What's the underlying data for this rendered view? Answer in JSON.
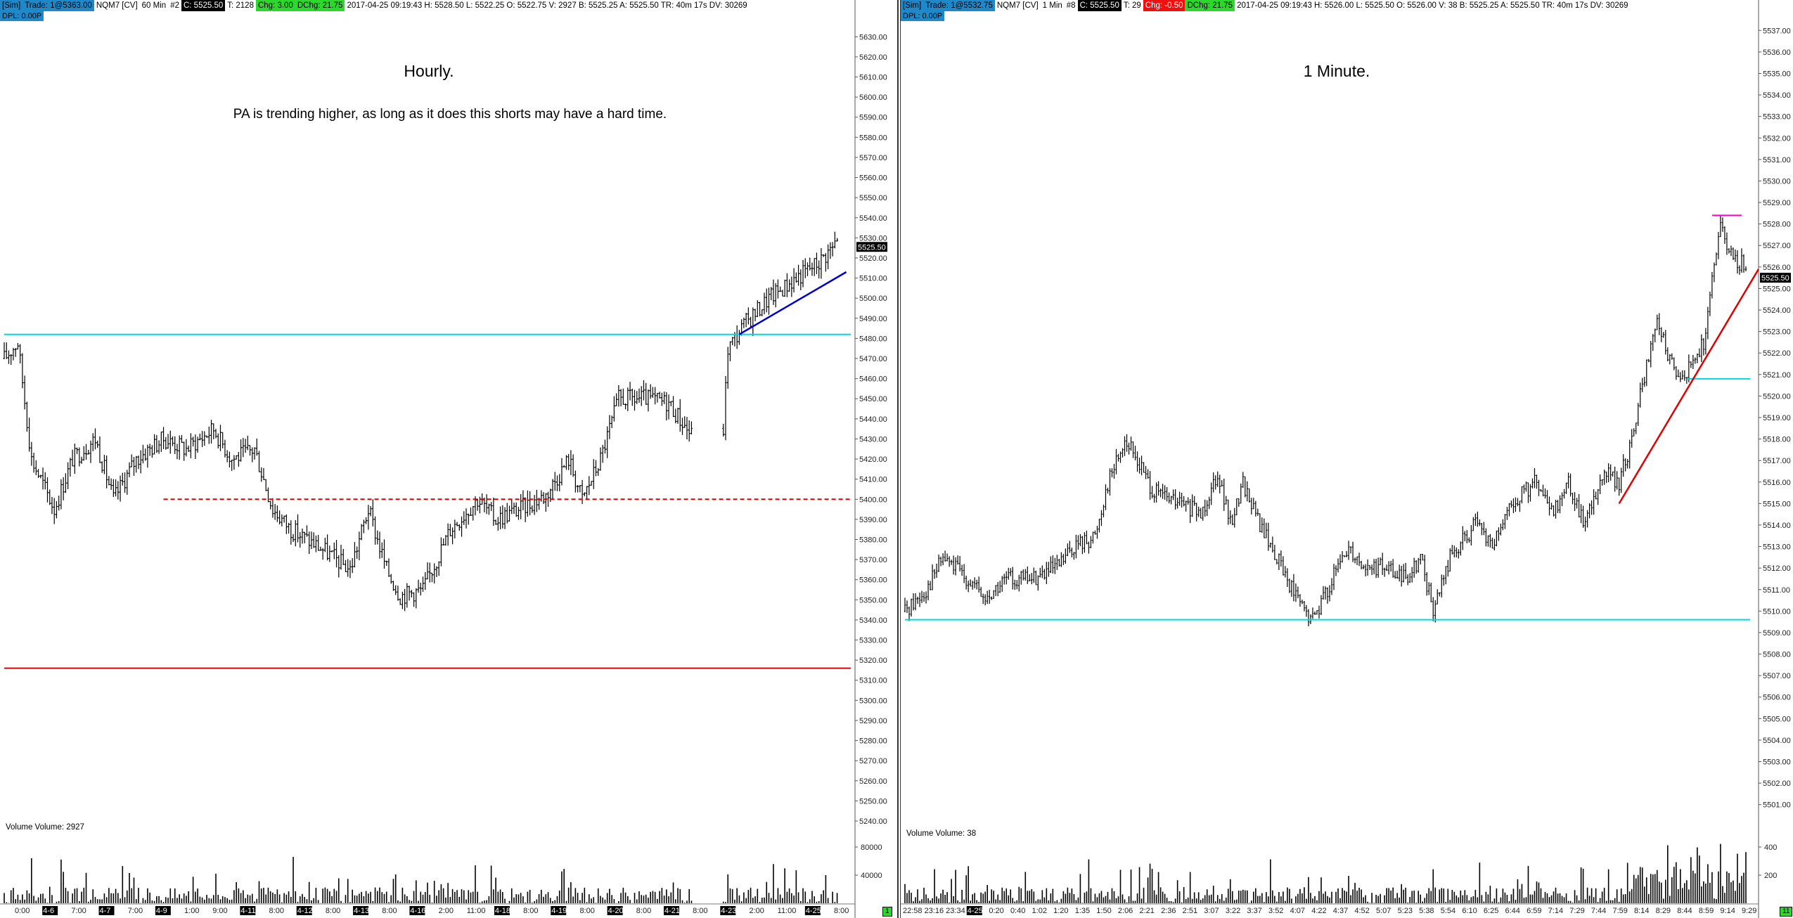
{
  "left": {
    "infobar": {
      "sim": "[Sim]",
      "trade": "Trade: 1@5363.00",
      "symbol": "NQM7 [CV]",
      "interval": "60 Min",
      "num": "#2",
      "close": "C: 5525.50",
      "ticks": "T: 2128",
      "chg": "Chg: 3.00",
      "dchg": "DChg: 21.75",
      "stats": "2017-04-25 09:19:43 H: 5528.50 L: 5522.25 O: 5522.75 V: 2927 B: 5525.25 A: 5525.50 TR: 40m 17s DV: 30269"
    },
    "dpl": "DPL: 0.00P",
    "title": "Hourly.",
    "note": "PA is trending higher, as long as it does this shorts may have a hard time.",
    "volume_label": "Volume  Volume: 2927",
    "price_badge": "5525.50",
    "corner_badge": "1"
  },
  "right": {
    "infobar": {
      "sim": "[Sim]",
      "trade": "Trade: 1@5532.75",
      "symbol": "NQM7 [CV]",
      "interval": "1 Min",
      "num": "#8",
      "close": "C: 5525.50",
      "ticks": "T: 29",
      "chg": "Chg: -0.50",
      "dchg": "DChg: 21.75",
      "stats": "2017-04-25 09:19:43 H: 5526.00 L: 5525.50 O: 5526.00 V: 38 B: 5525.25 A: 5525.50 TR: 40m 17s DV: 30269"
    },
    "dpl": "DPL: 0.00P",
    "title": "1 Minute.",
    "volume_label": "Volume  Volume: 38",
    "price_badge": "5525.50",
    "corner_badge": "11"
  },
  "chart_data": [
    {
      "type": "ohlc",
      "title": "Hourly.",
      "subtitle": "PA is trending higher, as long as it does this shorts may have a hard time.",
      "ylim": [
        5240,
        5635
      ],
      "y_ticks": [
        "5630.00",
        "5620.00",
        "5610.00",
        "5600.00",
        "5590.00",
        "5580.00",
        "5570.00",
        "5560.00",
        "5550.00",
        "5540.00",
        "5530.00",
        "5520.00",
        "5510.00",
        "5500.00",
        "5490.00",
        "5480.00",
        "5470.00",
        "5460.00",
        "5450.00",
        "5440.00",
        "5430.00",
        "5420.00",
        "5410.00",
        "5400.00",
        "5390.00",
        "5380.00",
        "5370.00",
        "5360.00",
        "5350.00",
        "5340.00",
        "5330.00",
        "5320.00",
        "5310.00",
        "5300.00",
        "5290.00",
        "5280.00",
        "5270.00",
        "5260.00",
        "5250.00",
        "5240.00"
      ],
      "x_labels": [
        "0:00",
        "4-6",
        "7:00",
        "4-7",
        "7:00",
        "4-9",
        "1:00",
        "9:00",
        "4-11",
        "8:00",
        "4-12",
        "8:00",
        "4-13",
        "8:00",
        "4-16",
        "2:00",
        "11:00",
        "4-18",
        "8:00",
        "4-19",
        "8:00",
        "4-20",
        "8:00",
        "4-21",
        "8:00",
        "4-23",
        "2:00",
        "11:00",
        "4-25",
        "8:00"
      ],
      "x_label_dates": [
        "4-6",
        "4-7",
        "4-9",
        "4-11",
        "4-12",
        "4-13",
        "4-16",
        "4-18",
        "4-19",
        "4-20",
        "4-21",
        "4-23",
        "4-25"
      ],
      "bar_count": 260,
      "price_path": [
        [
          0,
          5470
        ],
        [
          6,
          5478
        ],
        [
          12,
          5420
        ],
        [
          22,
          5395
        ],
        [
          30,
          5420
        ],
        [
          40,
          5430
        ],
        [
          48,
          5400
        ],
        [
          58,
          5420
        ],
        [
          70,
          5430
        ],
        [
          80,
          5425
        ],
        [
          92,
          5435
        ],
        [
          100,
          5420
        ],
        [
          110,
          5425
        ],
        [
          118,
          5395
        ],
        [
          126,
          5385
        ],
        [
          140,
          5375
        ],
        [
          152,
          5365
        ],
        [
          160,
          5395
        ],
        [
          168,
          5365
        ],
        [
          174,
          5352
        ],
        [
          184,
          5355
        ],
        [
          196,
          5385
        ],
        [
          208,
          5400
        ],
        [
          216,
          5390
        ],
        [
          226,
          5395
        ],
        [
          238,
          5402
        ],
        [
          248,
          5420
        ],
        [
          254,
          5400
        ],
        [
          262,
          5420
        ],
        [
          270,
          5450
        ],
        [
          282,
          5450
        ],
        [
          292,
          5448
        ],
        [
          300,
          5435
        ],
        [
          302,
          5432
        ],
        [
          316,
          5435
        ],
        [
          318,
          5475
        ],
        [
          326,
          5488
        ],
        [
          336,
          5500
        ],
        [
          348,
          5510
        ],
        [
          358,
          5518
        ],
        [
          366,
          5528
        ]
      ],
      "gap_bar_range": [
        302,
        316
      ],
      "lines": [
        {
          "kind": "horizontal",
          "price": 5482,
          "color": "#00d8e0",
          "from": 0,
          "to": 372
        },
        {
          "kind": "horizontal",
          "price": 5400,
          "color": "#e00000",
          "dashed": true,
          "from": 70,
          "to": 372
        },
        {
          "kind": "horizontal",
          "price": 5316,
          "color": "#e00000",
          "from": 0,
          "to": 372
        },
        {
          "kind": "trend",
          "from": [
            323,
            5482
          ],
          "to": [
            370,
            5513
          ],
          "color": "#0000d0"
        }
      ],
      "volume": {
        "label": "Volume",
        "value": 2927,
        "ylim": [
          0,
          100000
        ],
        "y_ticks": [
          "80000",
          "40000"
        ]
      },
      "last_price": 5525.5
    },
    {
      "type": "ohlc",
      "title": "1 Minute.",
      "ylim": [
        5500.5,
        5537.5
      ],
      "y_ticks": [
        "5537.00",
        "5536.00",
        "5535.00",
        "5534.00",
        "5533.00",
        "5532.00",
        "5531.00",
        "5530.00",
        "5529.00",
        "5528.00",
        "5527.00",
        "5526.00",
        "5525.00",
        "5524.00",
        "5523.00",
        "5522.00",
        "5521.00",
        "5520.00",
        "5519.00",
        "5518.00",
        "5517.00",
        "5516.00",
        "5515.00",
        "5514.00",
        "5513.00",
        "5512.00",
        "5511.00",
        "5510.00",
        "5509.00",
        "5508.00",
        "5507.00",
        "5506.00",
        "5505.00",
        "5504.00",
        "5503.00",
        "5502.00",
        "5501.00"
      ],
      "x_labels": [
        "22:58",
        "23:16",
        "23:34",
        "4-25",
        "0:20",
        "0:40",
        "1:02",
        "1:20",
        "1:35",
        "1:50",
        "2:06",
        "2:21",
        "2:36",
        "2:51",
        "3:07",
        "3:22",
        "3:37",
        "3:52",
        "4:07",
        "4:22",
        "4:37",
        "4:52",
        "5:07",
        "5:23",
        "5:38",
        "5:54",
        "6:10",
        "6:25",
        "6:44",
        "6:59",
        "7:14",
        "7:29",
        "7:44",
        "7:59",
        "8:14",
        "8:29",
        "8:44",
        "8:59",
        "9:14",
        "9:29"
      ],
      "x_label_dates": [
        "4-25"
      ],
      "price_path": [
        [
          0,
          5510
        ],
        [
          10,
          5511
        ],
        [
          18,
          5512.5
        ],
        [
          30,
          5511.5
        ],
        [
          38,
          5510.5
        ],
        [
          48,
          5511.5
        ],
        [
          60,
          5511.5
        ],
        [
          72,
          5512
        ],
        [
          80,
          5513
        ],
        [
          90,
          5513.5
        ],
        [
          96,
          5516
        ],
        [
          104,
          5518
        ],
        [
          110,
          5517
        ],
        [
          118,
          5515.5
        ],
        [
          130,
          5515
        ],
        [
          140,
          5514.5
        ],
        [
          148,
          5516.5
        ],
        [
          154,
          5514
        ],
        [
          160,
          5516
        ],
        [
          168,
          5514
        ],
        [
          176,
          5512.5
        ],
        [
          186,
          5510.5
        ],
        [
          192,
          5509.5
        ],
        [
          200,
          5511
        ],
        [
          210,
          5513
        ],
        [
          218,
          5512
        ],
        [
          228,
          5512
        ],
        [
          236,
          5511.5
        ],
        [
          244,
          5512.5
        ],
        [
          250,
          5510
        ],
        [
          258,
          5512.5
        ],
        [
          270,
          5514
        ],
        [
          278,
          5513
        ],
        [
          288,
          5515
        ],
        [
          298,
          5516
        ],
        [
          306,
          5514.5
        ],
        [
          314,
          5516
        ],
        [
          322,
          5514
        ],
        [
          330,
          5516.5
        ],
        [
          338,
          5516
        ],
        [
          344,
          5518
        ],
        [
          348,
          5520
        ],
        [
          356,
          5523.5
        ],
        [
          362,
          5521.5
        ],
        [
          370,
          5521
        ],
        [
          378,
          5522.5
        ],
        [
          386,
          5528
        ],
        [
          390,
          5526.5
        ],
        [
          398,
          5526
        ]
      ],
      "lines": [
        {
          "kind": "horizontal",
          "price": 5509.6,
          "color": "#00d8e0",
          "from": 0,
          "to": 400
        },
        {
          "kind": "horizontal",
          "price": 5520.8,
          "color": "#00d8e0",
          "from": 370,
          "to": 400
        },
        {
          "kind": "horizontal",
          "price": 5528.4,
          "color": "#ff00cc",
          "from": 382,
          "to": 396
        },
        {
          "kind": "trend",
          "from": [
            338,
            5515
          ],
          "to": [
            404,
            5525.9
          ],
          "color": "#e00000"
        }
      ],
      "volume": {
        "label": "Volume",
        "value": 38,
        "ylim": [
          0,
          500
        ],
        "y_ticks": [
          "400",
          "200"
        ]
      },
      "last_price": 5525.5
    }
  ]
}
